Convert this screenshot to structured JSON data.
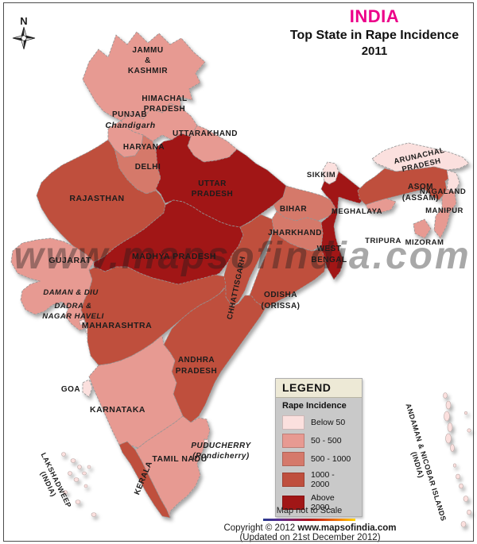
{
  "title": {
    "country": "INDIA",
    "line1": "Top State in Rape Incidence",
    "line2": "2011"
  },
  "compass": {
    "n": "N"
  },
  "legend": {
    "header": "LEGEND",
    "subtitle": "Rape Incidence",
    "items": [
      {
        "key": "below50",
        "label": "Below 50",
        "color": "#FBE0DE"
      },
      {
        "key": "c50_500",
        "label": "50 - 500",
        "color": "#E79A92"
      },
      {
        "key": "c500_1000",
        "label": "500 - 1000",
        "color": "#D5796B"
      },
      {
        "key": "c1000_2000",
        "label": "1000 - 2000",
        "color": "#BF4F3E"
      },
      {
        "key": "above2000",
        "label": "Above 2000.",
        "color": "#A11616"
      }
    ]
  },
  "map": {
    "watermark": "www.mapsofindia.com",
    "states": [
      {
        "id": "jammu-kashmir",
        "name": "Jammu & Kashmir",
        "label_lines": [
          "JAMMU",
          "&",
          "KASHMIR"
        ],
        "category": "c50_500"
      },
      {
        "id": "himachal-pradesh",
        "name": "Himachal Pradesh",
        "label_lines": [
          "HIMACHAL",
          "PRADESH"
        ],
        "category": "c50_500"
      },
      {
        "id": "punjab",
        "name": "Punjab",
        "label_lines": [
          "PUNJAB"
        ],
        "category": "c50_500"
      },
      {
        "id": "chandigarh",
        "name": "Chandigarh",
        "label_lines": [
          "Chandigarh"
        ],
        "category": null
      },
      {
        "id": "uttarakhand",
        "name": "Uttarakhand",
        "label_lines": [
          "UTTARAKHAND"
        ],
        "category": "c50_500"
      },
      {
        "id": "haryana",
        "name": "Haryana",
        "label_lines": [
          "HARYANA"
        ],
        "category": "c500_1000"
      },
      {
        "id": "delhi",
        "name": "Delhi",
        "label_lines": [
          "DELHI"
        ],
        "category": "c500_1000"
      },
      {
        "id": "rajasthan",
        "name": "Rajasthan",
        "label_lines": [
          "RAJASTHAN"
        ],
        "category": "c1000_2000"
      },
      {
        "id": "uttar-pradesh",
        "name": "Uttar Pradesh",
        "label_lines": [
          "UTTAR",
          "PRADESH"
        ],
        "category": "above2000"
      },
      {
        "id": "bihar",
        "name": "Bihar",
        "label_lines": [
          "BIHAR"
        ],
        "category": "c500_1000"
      },
      {
        "id": "sikkim",
        "name": "Sikkim",
        "label_lines": [
          "SIKKIM"
        ],
        "category": "below50"
      },
      {
        "id": "west-bengal",
        "name": "West Bengal",
        "label_lines": [
          "WEST",
          "BENGAL"
        ],
        "category": "above2000"
      },
      {
        "id": "jharkhand",
        "name": "Jharkhand",
        "label_lines": [
          "JHARKHAND"
        ],
        "category": "c500_1000"
      },
      {
        "id": "arunachal-pradesh",
        "name": "Arunachal Pradesh",
        "label_lines": [
          "ARUNACHAL",
          "PRADESH"
        ],
        "category": "below50"
      },
      {
        "id": "assam",
        "name": "Asom (Assam)",
        "label_lines": [
          "ASOM",
          "(ASSAM)"
        ],
        "category": "c1000_2000"
      },
      {
        "id": "nagaland",
        "name": "Nagaland",
        "label_lines": [
          "NAGALAND"
        ],
        "category": "below50"
      },
      {
        "id": "meghalaya",
        "name": "Meghalaya",
        "label_lines": [
          "MEGHALAYA"
        ],
        "category": "c50_500"
      },
      {
        "id": "manipur",
        "name": "Manipur",
        "label_lines": [
          "MANIPUR"
        ],
        "category": "c50_500"
      },
      {
        "id": "tripura",
        "name": "Tripura",
        "label_lines": [
          "TRIPURA"
        ],
        "category": "c50_500"
      },
      {
        "id": "mizoram",
        "name": "Mizoram",
        "label_lines": [
          "MIZORAM"
        ],
        "category": "c50_500"
      },
      {
        "id": "gujarat",
        "name": "Gujarat",
        "label_lines": [
          "GUJARAT"
        ],
        "category": "c50_500"
      },
      {
        "id": "madhya-pradesh",
        "name": "Madhya Pradesh",
        "label_lines": [
          "MADHYA PRADESH"
        ],
        "category": "above2000"
      },
      {
        "id": "chhattisgarh",
        "name": "Chhattisgarh",
        "label_lines": [
          "CHHATTISGARH"
        ],
        "category": "c1000_2000"
      },
      {
        "id": "odisha",
        "name": "Odisha (Orissa)",
        "label_lines": [
          "ODISHA",
          "(ORISSA)"
        ],
        "category": "c1000_2000"
      },
      {
        "id": "daman-diu",
        "name": "Daman & Diu",
        "label_lines": [
          "DAMAN & DIU"
        ],
        "category": "below50"
      },
      {
        "id": "dadra-nagar-haveli",
        "name": "Dadra & Nagar Haveli",
        "label_lines": [
          "DADRA &",
          "NAGAR HAVELI"
        ],
        "category": "below50"
      },
      {
        "id": "maharashtra",
        "name": "Maharashtra",
        "label_lines": [
          "MAHARASHTRA"
        ],
        "category": "c1000_2000"
      },
      {
        "id": "andhra-pradesh",
        "name": "Andhra Pradesh",
        "label_lines": [
          "ANDHRA",
          "PRADESH"
        ],
        "category": "c1000_2000"
      },
      {
        "id": "goa",
        "name": "Goa",
        "label_lines": [
          "GOA"
        ],
        "category": "below50"
      },
      {
        "id": "karnataka",
        "name": "Karnataka",
        "label_lines": [
          "KARNATAKA"
        ],
        "category": "c50_500"
      },
      {
        "id": "kerala",
        "name": "Kerala",
        "label_lines": [
          "KERALA"
        ],
        "category": "c1000_2000"
      },
      {
        "id": "tamil-nadu",
        "name": "Tamil Nadu",
        "label_lines": [
          "TAMIL NADU"
        ],
        "category": "c50_500"
      },
      {
        "id": "puducherry",
        "name": "Puducherry (Pondicherry)",
        "label_lines": [
          "PUDUCHERRY",
          "(Pondicherry)"
        ],
        "category": "below50"
      },
      {
        "id": "lakshadweep",
        "name": "Lakshadweep (India)",
        "label_lines": [
          "LAKSHADWEEP",
          "(INDIA)"
        ],
        "category": "below50"
      },
      {
        "id": "andaman-nicobar",
        "name": "Andaman & Nicobar Islands (India)",
        "label_lines": [
          "ANDAMAN & NICOBAR ISLANDS",
          "(INDIA)"
        ],
        "category": "below50"
      }
    ]
  },
  "footer": {
    "scale_note": "Map not to Scale",
    "copyright_prefix": "Copyright © 2012 ",
    "copyright_site": "www.mapsofindia.com",
    "updated": "(Updated on 21st December 2012)"
  }
}
